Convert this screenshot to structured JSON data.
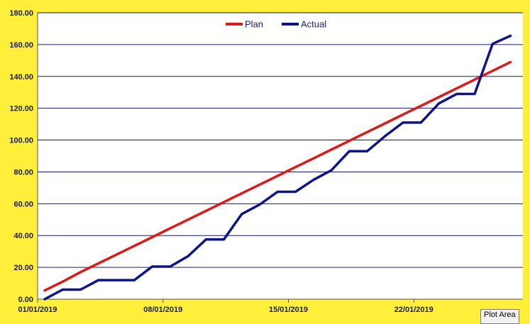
{
  "chart_data": {
    "type": "line",
    "title": "",
    "xlabel": "",
    "ylabel": "",
    "ylim": [
      0,
      180
    ],
    "y_ticks": [
      "0.00",
      "20.00",
      "40.00",
      "60.00",
      "80.00",
      "100.00",
      "120.00",
      "140.00",
      "160.00",
      "180.00"
    ],
    "x_tick_labels": [
      {
        "label": "01/01/2019",
        "day": 0
      },
      {
        "label": "08/01/2019",
        "day": 7
      },
      {
        "label": "15/01/2019",
        "day": 14
      },
      {
        "label": "22/01/2019",
        "day": 21
      }
    ],
    "grid": "horizontal",
    "legend_position": "top-center",
    "series": [
      {
        "name": "Plan",
        "color": "#dd1a1a",
        "values": [
          5.5,
          11,
          17,
          22.5,
          28,
          33.5,
          39,
          44.5,
          50,
          55.5,
          61,
          66.5,
          72,
          77.5,
          83,
          88.5,
          94,
          99.5,
          105,
          110.5,
          116,
          121.5,
          127,
          132.5,
          138,
          143.5,
          149
        ]
      },
      {
        "name": "Actual",
        "color": "#0d148a",
        "values": [
          0,
          6,
          6,
          12,
          12,
          12,
          20.5,
          20.5,
          27,
          37.5,
          37.5,
          53.5,
          59.5,
          67.5,
          67.5,
          75,
          81,
          93,
          93,
          102.5,
          111,
          111,
          123,
          129,
          129,
          160.5,
          165.5
        ]
      }
    ]
  },
  "tooltip": {
    "text": "Plot Area"
  }
}
